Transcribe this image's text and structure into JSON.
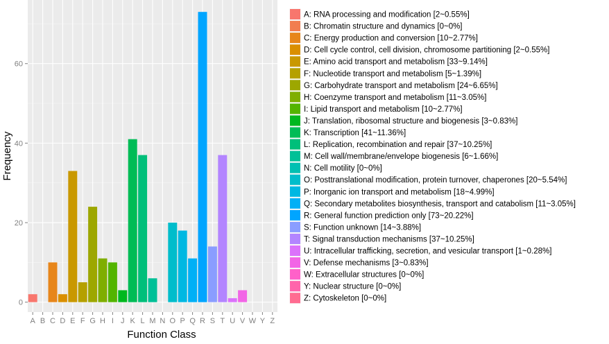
{
  "chart_data": {
    "type": "bar",
    "xlabel": "Function Class",
    "ylabel": "Frequency",
    "ylim": [
      -2.5,
      76
    ],
    "yticks": [
      0,
      20,
      40,
      60
    ],
    "grid": true,
    "legend_position": "right",
    "categories": [
      "A",
      "B",
      "C",
      "D",
      "E",
      "F",
      "G",
      "H",
      "I",
      "J",
      "K",
      "L",
      "M",
      "N",
      "O",
      "P",
      "Q",
      "R",
      "S",
      "T",
      "U",
      "V",
      "W",
      "Y",
      "Z"
    ],
    "values": [
      2,
      0,
      10,
      2,
      33,
      5,
      24,
      11,
      10,
      3,
      41,
      37,
      6,
      0,
      20,
      18,
      11,
      73,
      14,
      37,
      1,
      3,
      0,
      0,
      0
    ],
    "colors": [
      "#F8766D",
      "#F17D50",
      "#E7861B",
      "#DA8F00",
      "#C99800",
      "#B5A000",
      "#9DA700",
      "#7FAE00",
      "#53B400",
      "#00B81F",
      "#00BC56",
      "#00BF7A",
      "#00C097",
      "#00C0B2",
      "#00BDCB",
      "#00B8E2",
      "#00B0F6",
      "#00A5FF",
      "#8A9DFF",
      "#B385FF",
      "#DB72FB",
      "#F265E6",
      "#FF61C9",
      "#FF64AB",
      "#FF6C91"
    ],
    "legend": [
      "A: RNA processing and modification [2~0.55%]",
      "B: Chromatin structure and dynamics [0~0%]",
      "C: Energy production and conversion [10~2.77%]",
      "D: Cell cycle control, cell division, chromosome partitioning [2~0.55%]",
      "E: Amino acid transport and metabolism [33~9.14%]",
      "F: Nucleotide transport and metabolism [5~1.39%]",
      "G: Carbohydrate transport and metabolism [24~6.65%]",
      "H: Coenzyme transport and metabolism [11~3.05%]",
      "I: Lipid transport and metabolism [10~2.77%]",
      "J: Translation, ribosomal structure and biogenesis [3~0.83%]",
      "K: Transcription [41~11.36%]",
      "L: Replication, recombination and repair [37~10.25%]",
      "M: Cell wall/membrane/envelope biogenesis [6~1.66%]",
      "N: Cell motility [0~0%]",
      "O: Posttranslational modification, protein turnover, chaperones [20~5.54%]",
      "P: Inorganic ion transport and metabolism [18~4.99%]",
      "Q: Secondary metabolites biosynthesis, transport and catabolism [11~3.05%]",
      "R: General function prediction only [73~20.22%]",
      "S: Function unknown [14~3.88%]",
      "T: Signal transduction mechanisms [37~10.25%]",
      "U: Intracellular trafficking, secretion, and vesicular transport [1~0.28%]",
      "V: Defense mechanisms [3~0.83%]",
      "W: Extracellular structures [0~0%]",
      "Y: Nuclear structure [0~0%]",
      "Z: Cytoskeleton [0~0%]"
    ]
  }
}
